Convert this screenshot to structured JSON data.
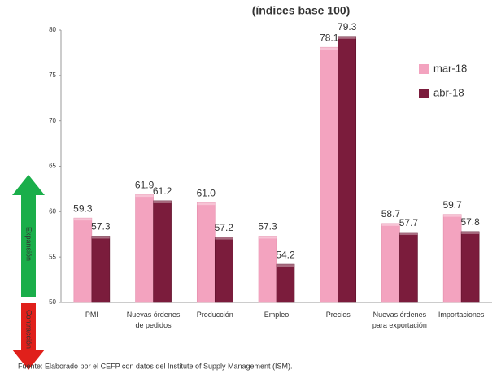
{
  "chart_data": {
    "type": "bar",
    "title": "(índices base 100)",
    "categories": [
      "PMI",
      "Nuevas órdenes de pedidos",
      "Producción",
      "Empleo",
      "Precios",
      "Nuevas órdenes para exportación",
      "Importaciones"
    ],
    "series": [
      {
        "name": "mar-18",
        "color": "#f3a3bf",
        "values": [
          59.3,
          61.9,
          61.0,
          57.3,
          78.1,
          58.7,
          59.7
        ],
        "value_labels": [
          "59.3",
          "61.9",
          "61.0",
          "57.3",
          "78.1",
          "58.7",
          "59.7"
        ]
      },
      {
        "name": "abr-18",
        "color": "#7b1c3c",
        "values": [
          57.3,
          61.2,
          57.2,
          54.2,
          79.3,
          57.7,
          57.8
        ],
        "value_labels": [
          "57.3",
          "61.2",
          "57.2",
          "54.2",
          "79.3",
          "57.7",
          "57.8"
        ]
      }
    ],
    "ylim": [
      50,
      80
    ],
    "yticks": [
      50,
      55,
      60,
      65,
      70,
      75,
      80
    ],
    "legend": "upper right",
    "annotations": {
      "expansion": "Expansión",
      "contraction": "Contracción"
    },
    "source": "Fuente: Elaborado por el CEFP con datos del Institute of Supply Management (ISM)."
  }
}
